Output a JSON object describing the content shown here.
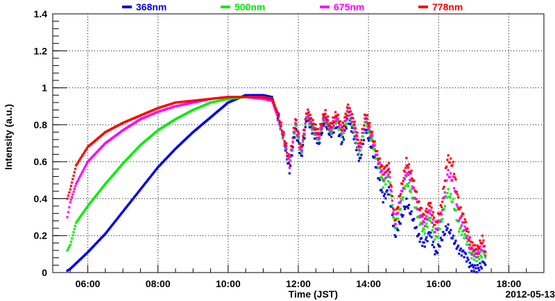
{
  "chart_data": {
    "type": "scatter",
    "xlabel": "Time (JST)",
    "ylabel": "Intensity (a.u.)",
    "date_label": "2012-05-13",
    "xlim": [
      "05:00",
      "19:00"
    ],
    "ylim": [
      0,
      1.4
    ],
    "x_ticks": [
      "06:00",
      "08:00",
      "10:00",
      "12:00",
      "14:00",
      "16:00",
      "18:00"
    ],
    "y_ticks": [
      "0",
      "0.2",
      "0.4",
      "0.6",
      "0.8",
      "1",
      "1.2",
      "1.4"
    ],
    "grid": true,
    "legend_position": "top",
    "x": [
      "05:25",
      "05:30",
      "05:40",
      "06:00",
      "06:30",
      "07:00",
      "07:30",
      "08:00",
      "08:30",
      "09:00",
      "09:30",
      "10:00",
      "10:30",
      "11:00",
      "11:15",
      "11:25",
      "11:35",
      "11:45",
      "11:55",
      "12:05",
      "12:15",
      "12:25",
      "12:35",
      "12:45",
      "12:55",
      "13:05",
      "13:15",
      "13:25",
      "13:35",
      "13:45",
      "13:55",
      "14:05",
      "14:15",
      "14:25",
      "14:35",
      "14:45",
      "14:55",
      "15:05",
      "15:15",
      "15:25",
      "15:35",
      "15:45",
      "15:55",
      "16:05",
      "16:15",
      "16:25",
      "16:35",
      "16:45",
      "16:55",
      "17:05",
      "17:15",
      "17:20"
    ],
    "series": [
      {
        "name": "368nm",
        "color": "#0000ee",
        "values": [
          0.01,
          0.02,
          0.05,
          0.11,
          0.21,
          0.33,
          0.45,
          0.57,
          0.67,
          0.76,
          0.84,
          0.92,
          0.96,
          0.96,
          0.95,
          0.85,
          0.72,
          0.55,
          0.78,
          0.62,
          0.84,
          0.76,
          0.7,
          0.82,
          0.74,
          0.8,
          0.7,
          0.84,
          0.74,
          0.6,
          0.78,
          0.68,
          0.55,
          0.4,
          0.45,
          0.2,
          0.28,
          0.38,
          0.3,
          0.2,
          0.15,
          0.22,
          0.1,
          0.18,
          0.25,
          0.18,
          0.12,
          0.1,
          0.03,
          0.02,
          0.04,
          0.03
        ]
      },
      {
        "name": "500nm",
        "color": "#00ee00",
        "values": [
          0.12,
          0.15,
          0.27,
          0.36,
          0.48,
          0.59,
          0.69,
          0.77,
          0.83,
          0.88,
          0.92,
          0.94,
          0.95,
          0.95,
          0.94,
          0.84,
          0.72,
          0.58,
          0.8,
          0.64,
          0.85,
          0.78,
          0.72,
          0.84,
          0.76,
          0.83,
          0.74,
          0.86,
          0.78,
          0.64,
          0.82,
          0.72,
          0.6,
          0.48,
          0.52,
          0.24,
          0.36,
          0.5,
          0.42,
          0.3,
          0.22,
          0.3,
          0.18,
          0.28,
          0.44,
          0.38,
          0.24,
          0.2,
          0.1,
          0.08,
          0.1,
          0.07
        ]
      },
      {
        "name": "675nm",
        "color": "#ff00ff",
        "values": [
          0.3,
          0.38,
          0.48,
          0.6,
          0.7,
          0.77,
          0.83,
          0.87,
          0.9,
          0.92,
          0.94,
          0.95,
          0.95,
          0.94,
          0.93,
          0.84,
          0.73,
          0.58,
          0.81,
          0.65,
          0.86,
          0.79,
          0.73,
          0.85,
          0.77,
          0.84,
          0.76,
          0.88,
          0.8,
          0.66,
          0.84,
          0.74,
          0.62,
          0.52,
          0.55,
          0.26,
          0.4,
          0.56,
          0.48,
          0.34,
          0.26,
          0.34,
          0.22,
          0.32,
          0.54,
          0.5,
          0.3,
          0.24,
          0.12,
          0.1,
          0.14,
          0.08
        ]
      },
      {
        "name": "778nm",
        "color": "#ff0000",
        "values": [
          0.4,
          0.45,
          0.58,
          0.68,
          0.76,
          0.81,
          0.85,
          0.89,
          0.92,
          0.93,
          0.94,
          0.95,
          0.95,
          0.95,
          0.94,
          0.86,
          0.74,
          0.6,
          0.83,
          0.67,
          0.88,
          0.81,
          0.75,
          0.87,
          0.79,
          0.86,
          0.78,
          0.9,
          0.82,
          0.68,
          0.86,
          0.76,
          0.64,
          0.55,
          0.58,
          0.28,
          0.44,
          0.6,
          0.52,
          0.38,
          0.3,
          0.38,
          0.26,
          0.36,
          0.62,
          0.58,
          0.36,
          0.28,
          0.16,
          0.12,
          0.18,
          0.1
        ]
      }
    ]
  }
}
